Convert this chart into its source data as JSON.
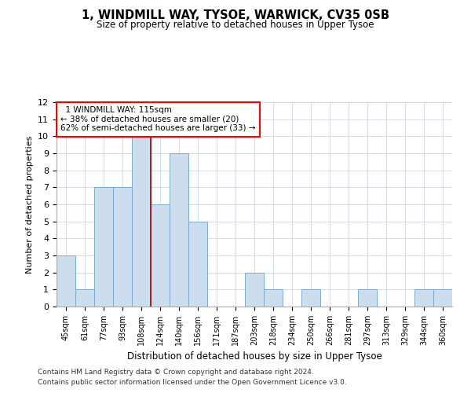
{
  "title1": "1, WINDMILL WAY, TYSOE, WARWICK, CV35 0SB",
  "title2": "Size of property relative to detached houses in Upper Tysoe",
  "xlabel": "Distribution of detached houses by size in Upper Tysoe",
  "ylabel": "Number of detached properties",
  "categories": [
    "45sqm",
    "61sqm",
    "77sqm",
    "93sqm",
    "108sqm",
    "124sqm",
    "140sqm",
    "156sqm",
    "171sqm",
    "187sqm",
    "203sqm",
    "218sqm",
    "234sqm",
    "250sqm",
    "266sqm",
    "281sqm",
    "297sqm",
    "313sqm",
    "329sqm",
    "344sqm",
    "360sqm"
  ],
  "values": [
    3,
    1,
    7,
    7,
    10,
    6,
    9,
    5,
    0,
    0,
    2,
    1,
    0,
    1,
    0,
    0,
    1,
    0,
    0,
    1,
    1
  ],
  "bar_color": "#ccdded",
  "bar_edgecolor": "#7aaccc",
  "red_line_index": 4.5,
  "annotation_title": "1 WINDMILL WAY: 115sqm",
  "annotation_line1": "← 38% of detached houses are smaller (20)",
  "annotation_line2": "62% of semi-detached houses are larger (33) →",
  "ylim": [
    0,
    12
  ],
  "yticks": [
    0,
    1,
    2,
    3,
    4,
    5,
    6,
    7,
    8,
    9,
    10,
    11,
    12
  ],
  "footer1": "Contains HM Land Registry data © Crown copyright and database right 2024.",
  "footer2": "Contains public sector information licensed under the Open Government Licence v3.0.",
  "bg_color": "#ffffff",
  "grid_color": "#c8d0dc"
}
